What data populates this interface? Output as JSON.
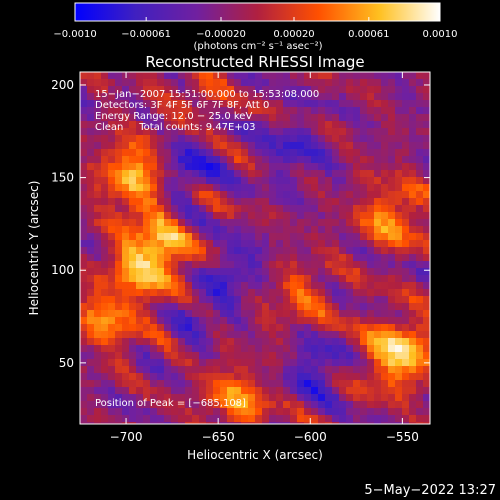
{
  "chart_data": {
    "type": "heatmap",
    "title": "Reconstructed RHESSI Image",
    "xlabel": "Heliocentric X (arcsec)",
    "ylabel": "Heliocentric Y (arcsec)",
    "xlim": [
      -725,
      -535
    ],
    "ylim": [
      17,
      207
    ],
    "x_ticks": [
      -700,
      -650,
      -600,
      -550
    ],
    "y_ticks": [
      50,
      100,
      150,
      200
    ],
    "x_tick_labels": [
      "−700",
      "−650",
      "−600",
      "−550"
    ],
    "y_tick_labels": [
      "50",
      "100",
      "150",
      "200"
    ],
    "colorbar": {
      "range": [
        -0.001,
        0.001
      ],
      "ticks": [
        -0.001,
        -0.00061,
        -0.0002,
        0.0002,
        0.00061,
        0.001
      ],
      "tick_labels": [
        "−0.0010",
        "−0.00061",
        "−0.00020",
        "0.00020",
        "0.00061",
        "0.0010"
      ],
      "units": "(photons cm⁻² s⁻¹ asec⁻²)",
      "colors": [
        "#0000ff",
        "#4020c0",
        "#7020a0",
        "#b02040",
        "#ff5000",
        "#ffc020",
        "#ffffff"
      ]
    },
    "annotations": [
      "15−Jan−2007 15:51:00.000 to 15:53:08.000",
      "Detectors: 3F 4F 5F 6F 7F 8F, Att 0",
      "Energy Range: 12.0 − 25.0 keV",
      "Clean     Total counts: 9.47E+03",
      "Position of Peak = [−685,108]"
    ],
    "bright_sources": [
      {
        "x": -685,
        "y": 108,
        "value": 0.001
      },
      {
        "x": -695,
        "y": 152,
        "value": 0.0008
      },
      {
        "x": -710,
        "y": 75,
        "value": 0.0006
      },
      {
        "x": -552,
        "y": 55,
        "value": 0.0009
      },
      {
        "x": -555,
        "y": 130,
        "value": 0.0006
      },
      {
        "x": -640,
        "y": 30,
        "value": 0.0006
      },
      {
        "x": -605,
        "y": 85,
        "value": 0.0004
      },
      {
        "x": -660,
        "y": 195,
        "value": 0.0003
      }
    ],
    "dark_sources": [
      {
        "x": -668,
        "y": 156,
        "value": -0.0006
      },
      {
        "x": -598,
        "y": 48,
        "value": -0.0005
      },
      {
        "x": -640,
        "y": 100,
        "value": -0.0004
      },
      {
        "x": -610,
        "y": 165,
        "value": -0.0004
      },
      {
        "x": -660,
        "y": 80,
        "value": -0.0003
      }
    ]
  },
  "footer": {
    "timestamp": "5−May−2022 13:27"
  }
}
